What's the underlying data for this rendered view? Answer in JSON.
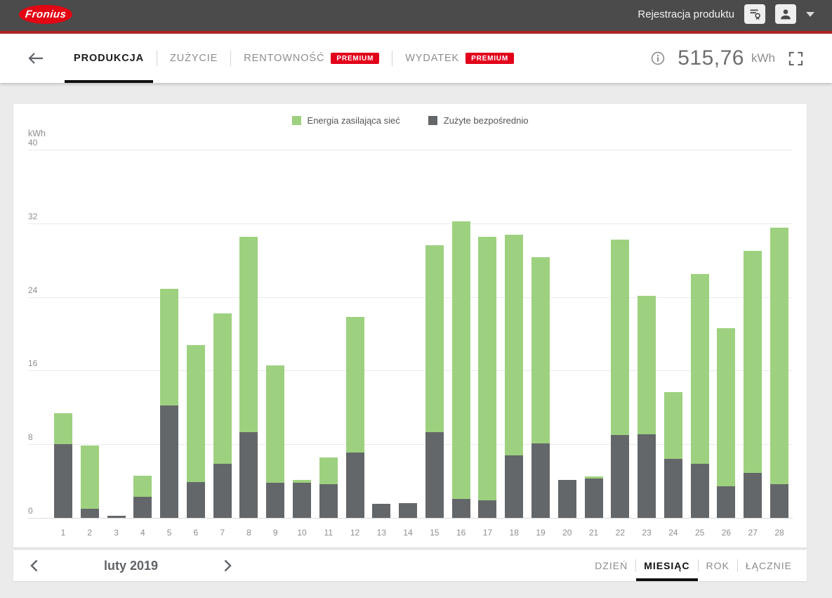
{
  "header": {
    "logo_text": "Fronius",
    "product_registration": "Rejestracja produktu"
  },
  "toolbar": {
    "tabs": [
      {
        "label": "PRODUKCJA",
        "premium": false,
        "active": true
      },
      {
        "label": "ZUŻYCIE",
        "premium": false,
        "active": false
      },
      {
        "label": "RENTOWNOŚĆ",
        "premium": true,
        "active": false
      },
      {
        "label": "WYDATEK",
        "premium": true,
        "active": false
      }
    ],
    "premium_label": "PREMIUM",
    "total_value": "515,76",
    "total_unit": "kWh"
  },
  "icons": {
    "back": "arrow-left",
    "info": "info-circle",
    "fullscreen": "corner-brackets",
    "registration": "certificate-card",
    "account": "person",
    "account_menu": "chevron-down",
    "prev_period": "chevron-left",
    "next_period": "chevron-right"
  },
  "chart_data": {
    "type": "bar",
    "stacked": true,
    "title": "",
    "unit_label": "kWh",
    "xlabel": "",
    "ylabel": "kWh",
    "ylim": [
      0,
      40
    ],
    "yticks": [
      0,
      8,
      16,
      24,
      32,
      40
    ],
    "grid": true,
    "legend_position": "top-center",
    "categories": [
      "1",
      "2",
      "3",
      "4",
      "5",
      "6",
      "7",
      "8",
      "9",
      "10",
      "11",
      "12",
      "13",
      "14",
      "15",
      "16",
      "17",
      "18",
      "19",
      "20",
      "21",
      "22",
      "23",
      "24",
      "25",
      "26",
      "27",
      "28"
    ],
    "series": [
      {
        "name": "Zużyte bezpośrednio",
        "color": "#64676a",
        "values": [
          8.0,
          1.0,
          0.2,
          2.3,
          12.2,
          3.9,
          5.9,
          9.3,
          3.8,
          3.8,
          3.7,
          7.1,
          1.5,
          1.6,
          9.3,
          2.1,
          1.9,
          6.8,
          8.1,
          4.1,
          4.3,
          9.0,
          9.1,
          6.4,
          5.9,
          3.4,
          4.9,
          3.7
        ]
      },
      {
        "name": "Energia zasilająca sieć",
        "color": "#9ed17f",
        "values": [
          3.4,
          6.9,
          0.0,
          2.3,
          12.7,
          14.9,
          16.3,
          21.2,
          12.8,
          0.3,
          2.9,
          14.7,
          0.0,
          0.0,
          20.3,
          30.1,
          28.6,
          24.0,
          20.2,
          0.0,
          0.2,
          21.2,
          15.0,
          7.3,
          20.6,
          17.2,
          24.1,
          27.8
        ]
      }
    ]
  },
  "footer": {
    "period_label": "luty 2019",
    "range_tabs": [
      {
        "label": "DZIEŃ",
        "active": false
      },
      {
        "label": "MIESIĄC",
        "active": true
      },
      {
        "label": "ROK",
        "active": false
      },
      {
        "label": "ŁĄCZNIE",
        "active": false
      }
    ]
  }
}
